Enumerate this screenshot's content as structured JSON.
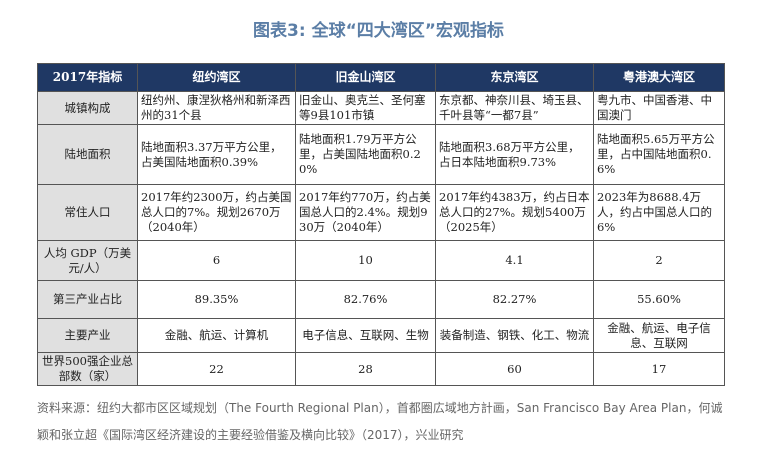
{
  "title": "图表3:  全球“四大湾区”宏观指标",
  "table": {
    "header": [
      "2017年指标",
      "纽约湾区",
      "旧金山湾区",
      "东京湾区",
      "粤港澳大湾区"
    ],
    "rows": [
      [
        "城镇构成",
        "纽约州、康涅狄格州和新泽西州的31个县",
        "旧金山、奥克兰、圣何塞等9县101市镇",
        "东京都、神奈川县、埼玉县、千叶县等“一都7县”",
        "粤九市、中国香港、中国澳门"
      ],
      [
        "陆地面积",
        "陆地面积3.37万平方公里，占美国陆地面积0.39%",
        "陆地面积1.79万平方公里，占美国陆地面积0.20%",
        "陆地面积3.68万平方公里，占日本陆地面积9.73%",
        "陆地面积5.65万平方公里，占中国陆地面积0.6%"
      ],
      [
        "常住人口",
        "2017年约2300万，约占美国总人口的7%。规划2670万（2040年）",
        "2017年约770万，约占美国总人口的2.4%。规划930万（2040年）",
        "2017年约4383万，约占日本总人口的27%。规划5400万（2025年）",
        "2023年为8688.4万人，约占中国总人口的6%"
      ],
      [
        "人均 GDP（万美元/人）",
        6,
        10,
        4.1,
        2
      ],
      [
        "第三产业占比",
        "89.35%",
        "82.76%",
        "82.27%",
        "55.60%"
      ],
      [
        "主要产业",
        "金融、航运、计算机",
        "电子信息、互联网、生物",
        "装备制造、钢铁、化工、物流",
        "金融、航运、电子信息、互联网"
      ],
      [
        "世界500强企业总部数（家）",
        22,
        28,
        60,
        17
      ]
    ]
  },
  "source": "资料来源：纽约大都市区区域规划（The Fourth Regional Plan），首都圈広域地方計画，San Francisco Bay Area Plan，何诚颖和张立超《国际湾区经济建设的主要经验借鉴及横向比较》（2017），兴业研究"
}
